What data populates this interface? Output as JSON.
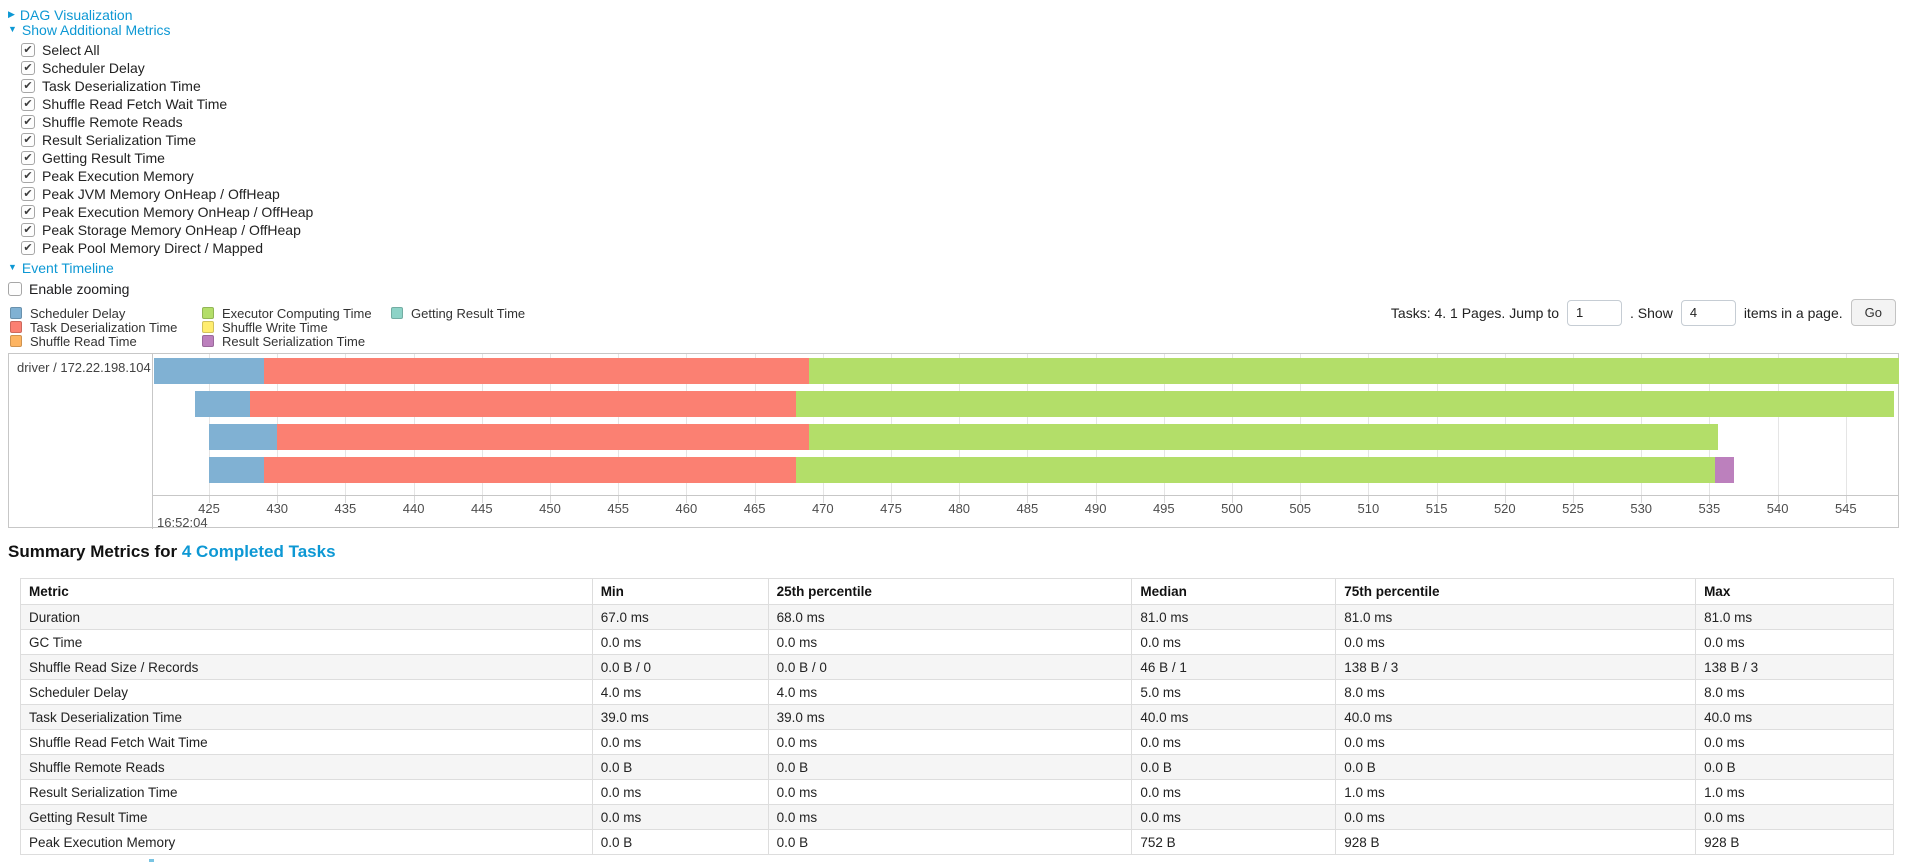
{
  "colors": {
    "link": "#0d98d4",
    "timeline": {
      "scheduler_delay": "#80B1D3",
      "task_deserialization": "#FB8072",
      "shuffle_read": "#FDB462",
      "executor_computing": "#B3DE69",
      "shuffle_write": "#FFED6F",
      "result_serialization": "#BC80BD",
      "getting_result": "#8DD3C7"
    }
  },
  "sections": {
    "dag": {
      "label": "DAG Visualization",
      "arrow": "▶"
    },
    "additional_metrics": {
      "label": "Show Additional Metrics",
      "arrow": "▼",
      "items": [
        {
          "label": "Select All",
          "checked": true
        },
        {
          "label": "Scheduler Delay",
          "checked": true
        },
        {
          "label": "Task Deserialization Time",
          "checked": true
        },
        {
          "label": "Shuffle Read Fetch Wait Time",
          "checked": true
        },
        {
          "label": "Shuffle Remote Reads",
          "checked": true
        },
        {
          "label": "Result Serialization Time",
          "checked": true
        },
        {
          "label": "Getting Result Time",
          "checked": true
        },
        {
          "label": "Peak Execution Memory",
          "checked": true
        },
        {
          "label": "Peak JVM Memory OnHeap / OffHeap",
          "checked": true
        },
        {
          "label": "Peak Execution Memory OnHeap / OffHeap",
          "checked": true
        },
        {
          "label": "Peak Storage Memory OnHeap / OffHeap",
          "checked": true
        },
        {
          "label": "Peak Pool Memory Direct / Mapped",
          "checked": true
        }
      ]
    },
    "event_timeline": {
      "label": "Event Timeline",
      "arrow": "▼",
      "enable_zooming": {
        "label": "Enable zooming",
        "checked": false
      }
    }
  },
  "legend": {
    "columns": [
      [
        {
          "label": "Scheduler Delay",
          "color_key": "scheduler_delay"
        },
        {
          "label": "Task Deserialization Time",
          "color_key": "task_deserialization"
        },
        {
          "label": "Shuffle Read Time",
          "color_key": "shuffle_read"
        }
      ],
      [
        {
          "label": "Executor Computing Time",
          "color_key": "executor_computing"
        },
        {
          "label": "Shuffle Write Time",
          "color_key": "shuffle_write"
        },
        {
          "label": "Result Serialization Time",
          "color_key": "result_serialization"
        }
      ],
      [
        {
          "label": "Getting Result Time",
          "color_key": "getting_result"
        }
      ]
    ]
  },
  "pagination": {
    "tasks_text": "Tasks: 4. 1 Pages. Jump to",
    "jump_value": "1",
    "show_label": ". Show",
    "show_value": "4",
    "items_label": "items in a page.",
    "go_label": "Go"
  },
  "chart_data": {
    "type": "timeline",
    "group_label": "driver / 172.22.198.104",
    "time_axis": {
      "tick_start": 425,
      "tick_end": 550,
      "tick_step": 5,
      "base_time_label": "16:52:04",
      "units": "milliseconds within second 16:52:04"
    },
    "tasks": [
      {
        "segments": [
          {
            "key": "scheduler_delay",
            "start": 421,
            "end": 429
          },
          {
            "key": "task_deserialization",
            "start": 429,
            "end": 469
          },
          {
            "key": "executor_computing",
            "start": 469,
            "end": 550
          }
        ]
      },
      {
        "segments": [
          {
            "key": "scheduler_delay",
            "start": 424,
            "end": 428
          },
          {
            "key": "task_deserialization",
            "start": 428,
            "end": 468
          },
          {
            "key": "executor_computing",
            "start": 468,
            "end": 548.5
          }
        ]
      },
      {
        "segments": [
          {
            "key": "scheduler_delay",
            "start": 425,
            "end": 430
          },
          {
            "key": "task_deserialization",
            "start": 430,
            "end": 469
          },
          {
            "key": "executor_computing",
            "start": 469,
            "end": 535.6
          }
        ]
      },
      {
        "segments": [
          {
            "key": "scheduler_delay",
            "start": 425,
            "end": 429
          },
          {
            "key": "task_deserialization",
            "start": 429,
            "end": 468
          },
          {
            "key": "executor_computing",
            "start": 468,
            "end": 535.4
          },
          {
            "key": "result_serialization",
            "start": 535.4,
            "end": 536.8
          }
        ]
      }
    ]
  },
  "summary": {
    "title": "Summary Metrics for",
    "title_link": "4 Completed Tasks",
    "columns": [
      "Metric",
      "Min",
      "25th percentile",
      "Median",
      "75th percentile",
      "Max"
    ],
    "rows": [
      {
        "metric": "Duration",
        "values": [
          "67.0 ms",
          "68.0 ms",
          "81.0 ms",
          "81.0 ms",
          "81.0 ms"
        ]
      },
      {
        "metric": "GC Time",
        "values": [
          "0.0 ms",
          "0.0 ms",
          "0.0 ms",
          "0.0 ms",
          "0.0 ms"
        ]
      },
      {
        "metric": "Shuffle Read Size / Records",
        "values": [
          "0.0 B / 0",
          "0.0 B / 0",
          "46 B / 1",
          "138 B / 3",
          "138 B / 3"
        ]
      },
      {
        "metric": "Scheduler Delay",
        "values": [
          "4.0 ms",
          "4.0 ms",
          "5.0 ms",
          "8.0 ms",
          "8.0 ms"
        ]
      },
      {
        "metric": "Task Deserialization Time",
        "values": [
          "39.0 ms",
          "39.0 ms",
          "40.0 ms",
          "40.0 ms",
          "40.0 ms"
        ]
      },
      {
        "metric": "Shuffle Read Fetch Wait Time",
        "values": [
          "0.0 ms",
          "0.0 ms",
          "0.0 ms",
          "0.0 ms",
          "0.0 ms"
        ]
      },
      {
        "metric": "Shuffle Remote Reads",
        "values": [
          "0.0 B",
          "0.0 B",
          "0.0 B",
          "0.0 B",
          "0.0 B"
        ]
      },
      {
        "metric": "Result Serialization Time",
        "values": [
          "0.0 ms",
          "0.0 ms",
          "0.0 ms",
          "1.0 ms",
          "1.0 ms"
        ]
      },
      {
        "metric": "Getting Result Time",
        "values": [
          "0.0 ms",
          "0.0 ms",
          "0.0 ms",
          "0.0 ms",
          "0.0 ms"
        ]
      },
      {
        "metric": "Peak Execution Memory",
        "values": [
          "0.0 B",
          "0.0 B",
          "752 B",
          "928 B",
          "928 B"
        ]
      }
    ]
  }
}
